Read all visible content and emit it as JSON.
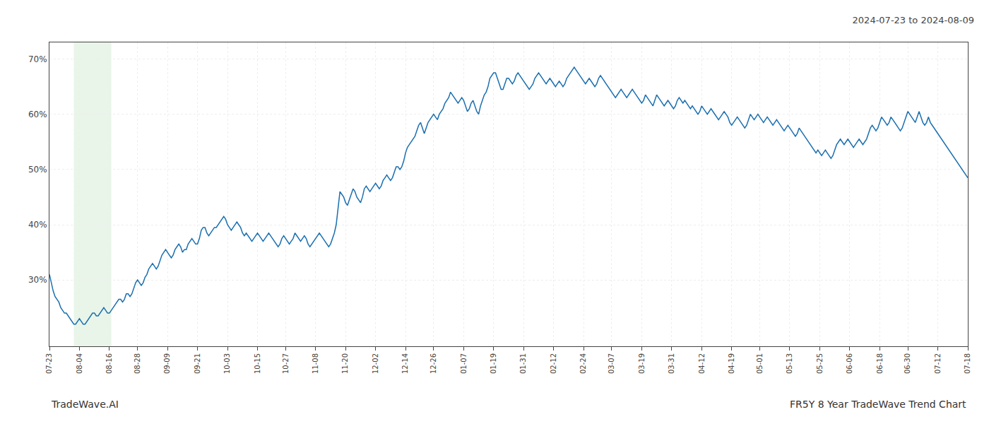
{
  "chart_data": {
    "type": "line",
    "title": "2024-07-23 to 2024-08-09",
    "annotations": [
      "TradeWave.AI",
      "FR5Y 8 Year TradeWave Trend Chart"
    ],
    "color": "#1a6faf",
    "grid": true,
    "highlight": {
      "start": 13,
      "end": 33,
      "color": "#c8e6c9"
    },
    "ylim": [
      18,
      73
    ],
    "yticks": [
      {
        "value": 30,
        "label": "30%"
      },
      {
        "value": 40,
        "label": "40%"
      },
      {
        "value": 50,
        "label": "50%"
      },
      {
        "value": 60,
        "label": "60%"
      },
      {
        "value": 70,
        "label": "70%"
      }
    ],
    "categories": [
      "07-23",
      null,
      null,
      null,
      null,
      null,
      null,
      null,
      null,
      null,
      null,
      null,
      null,
      null,
      null,
      null,
      "08-04",
      null,
      null,
      null,
      null,
      null,
      null,
      null,
      null,
      null,
      null,
      null,
      null,
      null,
      null,
      null,
      "08-16",
      null,
      null,
      null,
      null,
      null,
      null,
      null,
      null,
      null,
      null,
      null,
      null,
      null,
      null,
      "08-28",
      null,
      null,
      null,
      null,
      null,
      null,
      null,
      null,
      null,
      null,
      null,
      null,
      null,
      null,
      null,
      "09-09",
      null,
      null,
      null,
      null,
      null,
      null,
      null,
      null,
      null,
      null,
      null,
      null,
      null,
      null,
      null,
      "09-21",
      null,
      null,
      null,
      null,
      null,
      null,
      null,
      null,
      null,
      null,
      null,
      null,
      null,
      null,
      null,
      "10-03",
      null,
      null,
      null,
      null,
      null,
      null,
      null,
      null,
      null,
      null,
      null,
      null,
      null,
      null,
      null,
      "10-15",
      null,
      null,
      null,
      null,
      null,
      null,
      null,
      null,
      null,
      null,
      null,
      null,
      null,
      null,
      "10-27",
      null,
      null,
      null,
      null,
      null,
      null,
      null,
      null,
      null,
      null,
      null,
      null,
      null,
      null,
      null,
      "11-08",
      null,
      null,
      null,
      null,
      null,
      null,
      null,
      null,
      null,
      null,
      null,
      null,
      null,
      null,
      null,
      "11-20",
      null,
      null,
      null,
      null,
      null,
      null,
      null,
      null,
      null,
      null,
      null,
      null,
      null,
      null,
      null,
      "12-02",
      null,
      null,
      null,
      null,
      null,
      null,
      null,
      null,
      null,
      null,
      null,
      null,
      null,
      null,
      null,
      "12-14",
      null,
      null,
      null,
      null,
      null,
      null,
      null,
      null,
      null,
      null,
      null,
      null,
      null,
      null,
      "12-26",
      null,
      null,
      null,
      null,
      null,
      null,
      null,
      null,
      null,
      null,
      null,
      null,
      null,
      null,
      null,
      "01-07",
      null,
      null,
      null,
      null,
      null,
      null,
      null,
      null,
      null,
      null,
      null,
      null,
      null,
      null,
      null,
      "01-19",
      null,
      null,
      null,
      null,
      null,
      null,
      null,
      null,
      null,
      null,
      null,
      null,
      null,
      null,
      null,
      "01-31",
      null,
      null,
      null,
      null,
      null,
      null,
      null,
      null,
      null,
      null,
      null,
      null,
      null,
      null,
      null,
      "02-12",
      null,
      null,
      null,
      null,
      null,
      null,
      null,
      null,
      null,
      null,
      null,
      null,
      null,
      null,
      null,
      "02-24",
      null,
      null,
      null,
      null,
      null,
      null,
      null,
      null,
      null,
      null,
      null,
      null,
      null,
      null,
      "03-07",
      null,
      null,
      null,
      null,
      null,
      null,
      null,
      null,
      null,
      null,
      null,
      null,
      null,
      null,
      null,
      "03-19",
      null,
      null,
      null,
      null,
      null,
      null,
      null,
      null,
      null,
      null,
      null,
      null,
      null,
      null,
      null,
      "03-31",
      null,
      null,
      null,
      null,
      null,
      null,
      null,
      null,
      null,
      null,
      null,
      null,
      null,
      null,
      null,
      "04-12",
      null,
      null,
      null,
      null,
      null,
      null,
      null,
      null,
      null,
      null,
      null,
      null,
      null,
      null,
      null,
      "04-19",
      null,
      null,
      null,
      null,
      null,
      null,
      null,
      null,
      null,
      null,
      null,
      null,
      null,
      null,
      "05-01",
      null,
      null,
      null,
      null,
      null,
      null,
      null,
      null,
      null,
      null,
      null,
      null,
      null,
      null,
      null,
      "05-13",
      null,
      null,
      null,
      null,
      null,
      null,
      null,
      null,
      null,
      null,
      null,
      null,
      null,
      null,
      null,
      "05-25",
      null,
      null,
      null,
      null,
      null,
      null,
      null,
      null,
      null,
      null,
      null,
      null,
      null,
      null,
      null,
      "06-06",
      null,
      null,
      null,
      null,
      null,
      null,
      null,
      null,
      null,
      null,
      null,
      null,
      null,
      null,
      null,
      "06-18",
      null,
      null,
      null,
      null,
      null,
      null,
      null,
      null,
      null,
      null,
      null,
      null,
      null,
      null,
      "06-30",
      null,
      null,
      null,
      null,
      null,
      null,
      null,
      null,
      null,
      null,
      null,
      null,
      null,
      null,
      null,
      "07-12",
      null,
      null,
      null,
      null,
      null,
      null,
      null,
      null,
      null,
      null,
      null,
      null,
      null,
      null,
      null,
      "07-18"
    ],
    "values": [
      31.0,
      29.5,
      28.0,
      27.0,
      26.5,
      26.0,
      25.0,
      24.5,
      24.0,
      24.0,
      23.5,
      23.0,
      22.5,
      22.0,
      22.0,
      22.5,
      23.0,
      22.5,
      22.0,
      22.0,
      22.5,
      23.0,
      23.5,
      24.0,
      24.0,
      23.5,
      23.5,
      24.0,
      24.5,
      25.0,
      24.5,
      24.0,
      24.0,
      24.5,
      25.0,
      25.5,
      26.0,
      26.5,
      26.5,
      26.0,
      26.5,
      27.5,
      27.5,
      27.0,
      27.5,
      28.5,
      29.5,
      30.0,
      29.5,
      29.0,
      29.5,
      30.5,
      31.0,
      32.0,
      32.5,
      33.0,
      32.5,
      32.0,
      32.5,
      33.5,
      34.5,
      35.0,
      35.5,
      35.0,
      34.5,
      34.0,
      34.5,
      35.5,
      36.0,
      36.5,
      36.0,
      35.0,
      35.5,
      35.5,
      36.5,
      37.0,
      37.5,
      37.0,
      36.5,
      36.5,
      37.5,
      39.0,
      39.5,
      39.5,
      38.5,
      38.0,
      38.5,
      39.0,
      39.5,
      39.5,
      40.0,
      40.5,
      41.0,
      41.5,
      41.0,
      40.0,
      39.5,
      39.0,
      39.5,
      40.0,
      40.5,
      40.0,
      39.5,
      38.5,
      38.0,
      38.5,
      38.0,
      37.5,
      37.0,
      37.5,
      38.0,
      38.5,
      38.0,
      37.5,
      37.0,
      37.5,
      38.0,
      38.5,
      38.0,
      37.5,
      37.0,
      36.5,
      36.0,
      36.5,
      37.5,
      38.0,
      37.5,
      37.0,
      36.5,
      37.0,
      37.5,
      38.5,
      38.0,
      37.5,
      37.0,
      37.5,
      38.0,
      37.5,
      36.5,
      36.0,
      36.5,
      37.0,
      37.5,
      38.0,
      38.5,
      38.0,
      37.5,
      37.0,
      36.5,
      36.0,
      36.5,
      37.5,
      38.5,
      40.0,
      43.0,
      46.0,
      45.5,
      45.0,
      44.0,
      43.5,
      44.5,
      45.5,
      46.5,
      46.0,
      45.0,
      44.5,
      44.0,
      45.0,
      46.5,
      47.0,
      46.5,
      46.0,
      46.5,
      47.0,
      47.5,
      47.0,
      46.5,
      47.0,
      48.0,
      48.5,
      49.0,
      48.5,
      48.0,
      48.5,
      49.5,
      50.5,
      50.5,
      50.0,
      50.5,
      51.5,
      53.0,
      54.0,
      54.5,
      55.0,
      55.5,
      56.0,
      57.0,
      58.0,
      58.5,
      57.5,
      56.5,
      57.5,
      58.5,
      59.0,
      59.5,
      60.0,
      59.5,
      59.0,
      60.0,
      60.5,
      61.0,
      62.0,
      62.5,
      63.0,
      64.0,
      63.5,
      63.0,
      62.5,
      62.0,
      62.5,
      63.0,
      62.5,
      61.5,
      60.5,
      61.0,
      62.0,
      62.5,
      61.5,
      60.5,
      60.0,
      61.5,
      62.5,
      63.5,
      64.0,
      65.0,
      66.5,
      67.0,
      67.5,
      67.5,
      66.5,
      65.5,
      64.5,
      64.5,
      65.5,
      66.5,
      66.5,
      66.0,
      65.5,
      66.0,
      67.0,
      67.5,
      67.0,
      66.5,
      66.0,
      65.5,
      65.0,
      64.5,
      65.0,
      65.5,
      66.5,
      67.0,
      67.5,
      67.0,
      66.5,
      66.0,
      65.5,
      66.0,
      66.5,
      66.0,
      65.5,
      65.0,
      65.5,
      66.0,
      65.5,
      65.0,
      65.5,
      66.5,
      67.0,
      67.5,
      68.0,
      68.5,
      68.0,
      67.5,
      67.0,
      66.5,
      66.0,
      65.5,
      66.0,
      66.5,
      66.0,
      65.5,
      65.0,
      65.5,
      66.5,
      67.0,
      66.5,
      66.0,
      65.5,
      65.0,
      64.5,
      64.0,
      63.5,
      63.0,
      63.5,
      64.0,
      64.5,
      64.0,
      63.5,
      63.0,
      63.5,
      64.0,
      64.5,
      64.0,
      63.5,
      63.0,
      62.5,
      62.0,
      62.5,
      63.5,
      63.0,
      62.5,
      62.0,
      61.5,
      62.5,
      63.5,
      63.0,
      62.5,
      62.0,
      61.5,
      62.0,
      62.5,
      62.0,
      61.5,
      61.0,
      61.5,
      62.5,
      63.0,
      62.5,
      62.0,
      62.5,
      62.0,
      61.5,
      61.0,
      61.5,
      61.0,
      60.5,
      60.0,
      60.5,
      61.5,
      61.0,
      60.5,
      60.0,
      60.5,
      61.0,
      60.5,
      60.0,
      59.5,
      59.0,
      59.5,
      60.0,
      60.5,
      60.0,
      59.5,
      58.5,
      58.0,
      58.5,
      59.0,
      59.5,
      59.0,
      58.5,
      58.0,
      57.5,
      58.0,
      59.0,
      60.0,
      59.5,
      59.0,
      59.5,
      60.0,
      59.5,
      59.0,
      58.5,
      59.0,
      59.5,
      59.0,
      58.5,
      58.0,
      58.5,
      59.0,
      58.5,
      58.0,
      57.5,
      57.0,
      57.5,
      58.0,
      57.5,
      57.0,
      56.5,
      56.0,
      56.5,
      57.5,
      57.0,
      56.5,
      56.0,
      55.5,
      55.0,
      54.5,
      54.0,
      53.5,
      53.0,
      53.5,
      53.0,
      52.5,
      53.0,
      53.5,
      53.0,
      52.5,
      52.0,
      52.5,
      53.5,
      54.5,
      55.0,
      55.5,
      55.0,
      54.5,
      55.0,
      55.5,
      55.0,
      54.5,
      54.0,
      54.5,
      55.0,
      55.5,
      55.0,
      54.5,
      55.0,
      55.5,
      56.5,
      57.5,
      58.0,
      57.5,
      57.0,
      57.5,
      58.5,
      59.5,
      59.0,
      58.5,
      58.0,
      58.5,
      59.5,
      59.0,
      58.5,
      58.0,
      57.5,
      57.0,
      57.5,
      58.5,
      59.5,
      60.5,
      60.0,
      59.5,
      59.0,
      58.5,
      59.5,
      60.5,
      59.5,
      58.5,
      58.0,
      58.5,
      59.5,
      58.5,
      58.0,
      57.5,
      57.0,
      56.5,
      56.0,
      55.5,
      55.0,
      54.5,
      54.0,
      53.5,
      53.0,
      52.5,
      52.0,
      51.5,
      51.0,
      50.5,
      50.0,
      49.5,
      49.0,
      48.5
    ]
  }
}
